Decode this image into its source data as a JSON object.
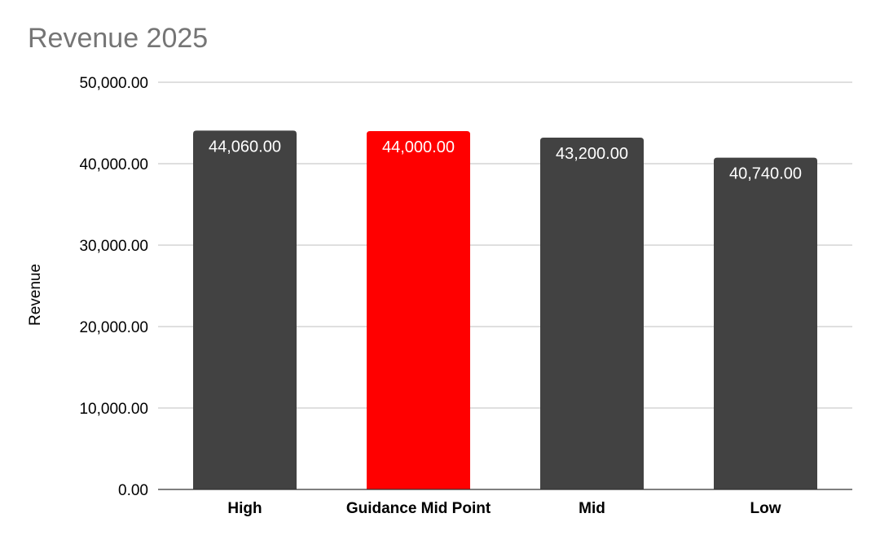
{
  "chart_data": {
    "type": "bar",
    "title": "Revenue 2025",
    "xlabel": "",
    "ylabel": "Revenue",
    "ylim": [
      0,
      50000
    ],
    "yticks": [
      "0.00",
      "10,000.00",
      "20,000.00",
      "30,000.00",
      "40,000.00",
      "50,000.00"
    ],
    "ytick_values": [
      0,
      10000,
      20000,
      30000,
      40000,
      50000
    ],
    "categories": [
      "High",
      "Guidance Mid Point",
      "Mid",
      "Low"
    ],
    "values": [
      44060,
      44000,
      43200,
      40740
    ],
    "value_labels": [
      "44,060.00",
      "44,000.00",
      "43,200.00",
      "40,740.00"
    ],
    "bar_colors": [
      "#424242",
      "#ff0000",
      "#424242",
      "#424242"
    ],
    "grid": true,
    "gridline_color": "#cccccc",
    "legend": "none"
  }
}
